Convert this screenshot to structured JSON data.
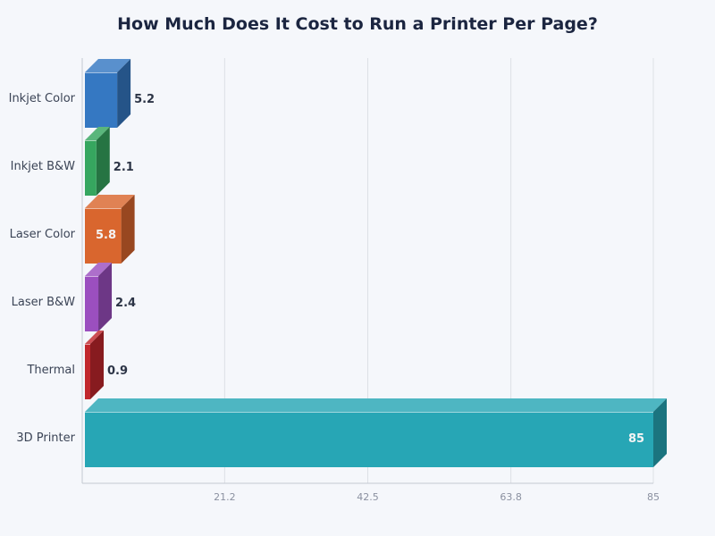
{
  "title": "How Much Does It Cost to Run a Printer Per Page?",
  "chart_data": {
    "type": "bar",
    "orientation": "horizontal",
    "style": "3d",
    "title": "How Much Does It Cost to Run a Printer Per Page?",
    "xlabel": "",
    "ylabel": "",
    "categories": [
      "Inkjet Color",
      "Inkjet B&W",
      "Laser Color",
      "Laser B&W",
      "Thermal",
      "3D Printer"
    ],
    "values": [
      5.2,
      2.1,
      5.8,
      2.4,
      0.9,
      85
    ],
    "value_labels": [
      "5.2",
      "2.1",
      "5.8",
      "2.4",
      "0.9",
      "85"
    ],
    "colors": [
      "#3578c2",
      "#36a65f",
      "#d9662e",
      "#9b4fbf",
      "#c1272d",
      "#27a6b5"
    ],
    "xlim": [
      0,
      85
    ],
    "xticks": [
      21.2,
      42.5,
      63.8,
      85
    ],
    "xtick_labels": [
      "21.2",
      "42.5",
      "63.8",
      "85"
    ],
    "grid": "vertical",
    "legend": "none"
  }
}
